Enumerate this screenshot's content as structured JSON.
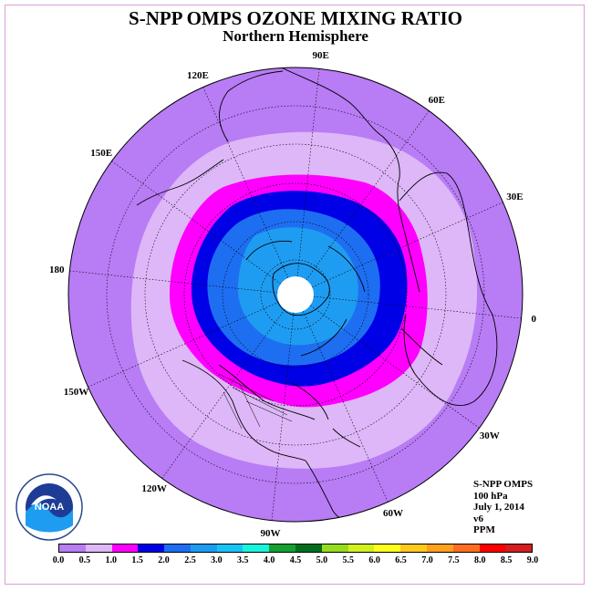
{
  "title": "S-NPP OMPS OZONE MIXING RATIO",
  "subtitle": "Northern Hemisphere",
  "longitude_labels": [
    "90E",
    "60E",
    "30E",
    "0",
    "30W",
    "60W",
    "90W",
    "120W",
    "150W",
    "180",
    "150E",
    "120E"
  ],
  "info": {
    "instrument": "S-NPP OMPS",
    "level": "100 hPa",
    "date": "July 1, 2014",
    "version": "v6",
    "units": "PPM"
  },
  "colorbar": {
    "ticks": [
      "0.0",
      "0.5",
      "1.0",
      "1.5",
      "2.0",
      "2.5",
      "3.0",
      "3.5",
      "4.0",
      "4.5",
      "5.0",
      "5.5",
      "6.0",
      "6.5",
      "7.0",
      "7.5",
      "8.0",
      "8.5",
      "9.0"
    ],
    "colors": [
      "#b87cf5",
      "#ddb7f7",
      "#ff00ff",
      "#0000e6",
      "#1e6ef2",
      "#1e9cf2",
      "#19c3f5",
      "#19f5dc",
      "#14a032",
      "#006e1e",
      "#96dc1e",
      "#d2f01e",
      "#ffff1e",
      "#ffc81e",
      "#ffa01e",
      "#ff6e1e",
      "#ff0000",
      "#d21e1e",
      "#8c5a3c"
    ]
  },
  "map_colors": {
    "outer": "#b87cf5",
    "ring1": "#ddb7f7",
    "ring2": "#ff00ff",
    "ring3": "#0000e6",
    "ring4": "#1e6ef2",
    "ring5": "#1e9cf2"
  },
  "logo_text": "NOAA"
}
